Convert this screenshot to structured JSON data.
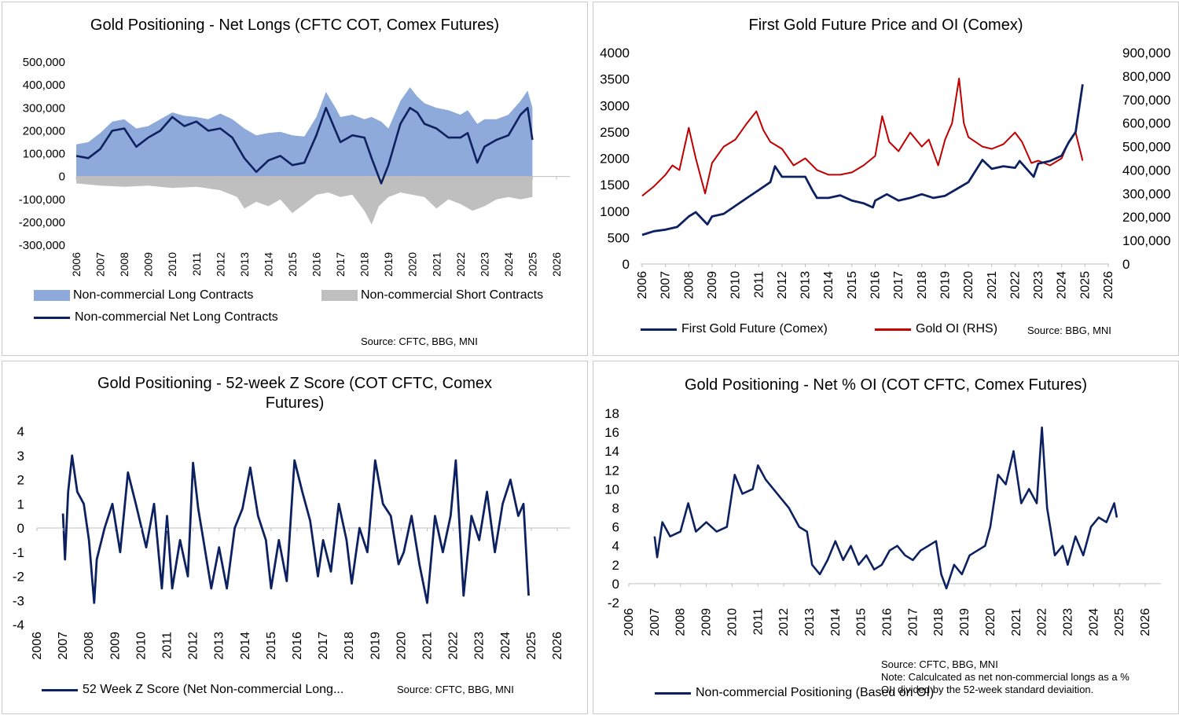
{
  "colors": {
    "long": "#8eaadb",
    "short": "#bfbfbf",
    "navy": "#0d2161",
    "red": "#c00000",
    "axis": "#bfbfbf"
  },
  "chart_data": [
    {
      "id": "p1",
      "type": "area",
      "title": "Gold Positioning - Net Longs (CFTC COT, Comex Futures)",
      "x_ticks": [
        "2006",
        "2007",
        "2008",
        "2009",
        "2010",
        "2011",
        "2012",
        "2013",
        "2014",
        "2015",
        "2016",
        "2017",
        "2018",
        "2019",
        "2020",
        "2021",
        "2022",
        "2023",
        "2024",
        "2025",
        "2026"
      ],
      "y_ticks": [
        "500,000",
        "400,000",
        "300,000",
        "200,000",
        "100,000",
        "0",
        "-100,000",
        "-200,000",
        "-300,000"
      ],
      "ylim": [
        -300000,
        500000
      ],
      "xlim": [
        2006,
        2026
      ],
      "series": [
        {
          "name": "Non-commercial Long Contracts",
          "kind": "area",
          "x": [
            2006,
            2006.5,
            2007,
            2007.5,
            2008,
            2008.5,
            2009,
            2009.5,
            2010,
            2010.5,
            2011,
            2011.5,
            2012,
            2012.5,
            2013,
            2013.5,
            2014,
            2014.5,
            2015,
            2015.5,
            2016,
            2016.4,
            2016.8,
            2017,
            2017.5,
            2018,
            2018.3,
            2018.7,
            2019,
            2019.5,
            2019.9,
            2020.2,
            2020.5,
            2021,
            2021.5,
            2022,
            2022.3,
            2022.7,
            2023,
            2023.5,
            2024,
            2024.5,
            2024.8,
            2025
          ],
          "y": [
            140000,
            150000,
            190000,
            240000,
            250000,
            210000,
            220000,
            250000,
            280000,
            265000,
            260000,
            250000,
            275000,
            250000,
            210000,
            180000,
            190000,
            195000,
            180000,
            175000,
            260000,
            370000,
            300000,
            260000,
            270000,
            250000,
            260000,
            240000,
            210000,
            330000,
            390000,
            350000,
            320000,
            300000,
            290000,
            270000,
            290000,
            230000,
            250000,
            250000,
            270000,
            330000,
            375000,
            300000
          ]
        },
        {
          "name": "Non-commercial Short Contracts",
          "kind": "area",
          "x": [
            2006,
            2007,
            2008,
            2009,
            2010,
            2011,
            2012,
            2012.7,
            2013,
            2013.5,
            2014,
            2014.5,
            2015,
            2015.5,
            2016,
            2016.5,
            2017,
            2017.5,
            2018,
            2018.3,
            2018.6,
            2019,
            2019.5,
            2020,
            2020.5,
            2021,
            2021.5,
            2022,
            2022.5,
            2023,
            2023.5,
            2024,
            2024.5,
            2025
          ],
          "y": [
            -30000,
            -40000,
            -45000,
            -40000,
            -50000,
            -45000,
            -60000,
            -90000,
            -140000,
            -110000,
            -130000,
            -100000,
            -160000,
            -120000,
            -80000,
            -70000,
            -90000,
            -80000,
            -150000,
            -210000,
            -130000,
            -90000,
            -70000,
            -80000,
            -90000,
            -140000,
            -100000,
            -120000,
            -150000,
            -130000,
            -100000,
            -90000,
            -100000,
            -90000
          ]
        },
        {
          "name": "Non-commercial Net Long Contracts",
          "kind": "line",
          "x": [
            2006,
            2006.5,
            2007,
            2007.5,
            2008,
            2008.5,
            2009,
            2009.5,
            2010,
            2010.5,
            2011,
            2011.5,
            2012,
            2012.5,
            2013,
            2013.5,
            2014,
            2014.5,
            2015,
            2015.5,
            2016,
            2016.4,
            2016.8,
            2017,
            2017.5,
            2018,
            2018.3,
            2018.7,
            2019,
            2019.5,
            2019.9,
            2020.2,
            2020.5,
            2021,
            2021.5,
            2022,
            2022.3,
            2022.7,
            2023,
            2023.5,
            2024,
            2024.5,
            2024.8,
            2025
          ],
          "y": [
            90000,
            80000,
            120000,
            200000,
            210000,
            130000,
            170000,
            200000,
            260000,
            220000,
            240000,
            200000,
            210000,
            170000,
            80000,
            20000,
            70000,
            90000,
            50000,
            60000,
            180000,
            300000,
            200000,
            150000,
            180000,
            170000,
            80000,
            -30000,
            50000,
            230000,
            300000,
            280000,
            230000,
            210000,
            170000,
            170000,
            190000,
            60000,
            130000,
            160000,
            180000,
            270000,
            300000,
            160000
          ]
        }
      ],
      "legend": [
        "Non-commercial Long Contracts",
        "Non-commercial Short Contracts",
        "Non-commercial Net Long Contracts"
      ],
      "source": "Source: CFTC, BBG, MNI"
    },
    {
      "id": "p2",
      "type": "line",
      "title": "First Gold Future  Price and OI (Comex)",
      "x_ticks": [
        "2006",
        "2007",
        "2008",
        "2009",
        "2010",
        "2011",
        "2012",
        "2013",
        "2014",
        "2015",
        "2016",
        "2017",
        "2018",
        "2019",
        "2020",
        "2021",
        "2022",
        "2023",
        "2024",
        "2025",
        "2026"
      ],
      "y_ticks_left": [
        "4000",
        "3500",
        "3000",
        "2500",
        "2000",
        "1500",
        "1000",
        "500",
        "0"
      ],
      "y_ticks_right": [
        "900,000",
        "800,000",
        "700,000",
        "600,000",
        "500,000",
        "400,000",
        "300,000",
        "200,000",
        "100,000",
        "0"
      ],
      "ylim_left": [
        0,
        4000
      ],
      "ylim_right": [
        0,
        900000
      ],
      "xlim": [
        2006,
        2026
      ],
      "series": [
        {
          "name": "First Gold Future (Comex)",
          "axis": "left",
          "x": [
            2006,
            2006.5,
            2007,
            2007.5,
            2008,
            2008.3,
            2008.8,
            2009,
            2009.5,
            2010,
            2010.5,
            2011,
            2011.5,
            2011.7,
            2012,
            2012.5,
            2013,
            2013.3,
            2013.5,
            2014,
            2014.5,
            2015,
            2015.5,
            2015.9,
            2016,
            2016.5,
            2017,
            2017.5,
            2018,
            2018.5,
            2019,
            2019.5,
            2020,
            2020.6,
            2021,
            2021.5,
            2022,
            2022.2,
            2022.8,
            2023,
            2023.5,
            2024,
            2024.3,
            2024.6,
            2024.9
          ],
          "y": [
            550,
            620,
            650,
            700,
            900,
            980,
            750,
            900,
            950,
            1100,
            1250,
            1400,
            1550,
            1850,
            1650,
            1650,
            1650,
            1400,
            1250,
            1250,
            1300,
            1200,
            1150,
            1070,
            1200,
            1320,
            1200,
            1250,
            1320,
            1250,
            1290,
            1420,
            1550,
            1970,
            1800,
            1850,
            1820,
            1950,
            1650,
            1900,
            1950,
            2050,
            2300,
            2500,
            3400
          ]
        },
        {
          "name": "Gold OI (RHS)",
          "axis": "right",
          "x": [
            2006,
            2006.5,
            2007,
            2007.3,
            2007.6,
            2008,
            2008.3,
            2008.7,
            2009,
            2009.5,
            2010,
            2010.5,
            2010.9,
            2011.2,
            2011.5,
            2012,
            2012.5,
            2013,
            2013.5,
            2014,
            2014.5,
            2015,
            2015.5,
            2016,
            2016.3,
            2016.6,
            2017,
            2017.5,
            2018,
            2018.3,
            2018.7,
            2019,
            2019.3,
            2019.6,
            2019.8,
            2020,
            2020.3,
            2020.6,
            2021,
            2021.5,
            2022,
            2022.3,
            2022.7,
            2023,
            2023.5,
            2024,
            2024.3,
            2024.6,
            2024.9
          ],
          "y": [
            290000,
            330000,
            380000,
            420000,
            400000,
            580000,
            450000,
            300000,
            430000,
            500000,
            530000,
            600000,
            650000,
            570000,
            520000,
            490000,
            420000,
            450000,
            400000,
            380000,
            380000,
            390000,
            420000,
            460000,
            630000,
            520000,
            480000,
            560000,
            500000,
            530000,
            420000,
            530000,
            600000,
            790000,
            600000,
            540000,
            520000,
            500000,
            490000,
            510000,
            560000,
            520000,
            430000,
            440000,
            420000,
            450000,
            520000,
            560000,
            440000
          ]
        }
      ],
      "legend": [
        "First Gold Future (Comex)",
        "Gold OI (RHS)"
      ],
      "source": "Source:  BBG, MNI"
    },
    {
      "id": "p3",
      "type": "line",
      "title_lines": [
        "Gold Positioning - 52-week Z Score (COT CFTC, Comex",
        "Futures)"
      ],
      "x_ticks": [
        "2006",
        "2007",
        "2008",
        "2009",
        "2010",
        "2011",
        "2012",
        "2013",
        "2014",
        "2015",
        "2016",
        "2017",
        "2018",
        "2019",
        "2020",
        "2021",
        "2022",
        "2023",
        "2024",
        "2025",
        "2026"
      ],
      "y_ticks": [
        "4",
        "3",
        "2",
        "1",
        "0",
        "-1",
        "-2",
        "-3",
        "-4"
      ],
      "ylim": [
        -4,
        4
      ],
      "xlim": [
        2006,
        2026
      ],
      "series": [
        {
          "name": "52 Week Z Score (Net Non-commercial Long...",
          "x": [
            2007.0,
            2007.08,
            2007.2,
            2007.35,
            2007.55,
            2007.8,
            2008.0,
            2008.2,
            2008.3,
            2008.6,
            2008.9,
            2009.2,
            2009.5,
            2009.8,
            2010.2,
            2010.5,
            2010.8,
            2011.0,
            2011.2,
            2011.5,
            2011.8,
            2012.0,
            2012.2,
            2012.4,
            2012.7,
            2013.0,
            2013.3,
            2013.6,
            2013.9,
            2014.2,
            2014.5,
            2014.8,
            2015.0,
            2015.3,
            2015.6,
            2015.9,
            2016.2,
            2016.5,
            2016.8,
            2017.0,
            2017.3,
            2017.6,
            2017.9,
            2018.1,
            2018.4,
            2018.7,
            2019.0,
            2019.3,
            2019.6,
            2019.9,
            2020.1,
            2020.4,
            2020.7,
            2021.0,
            2021.3,
            2021.6,
            2021.9,
            2022.1,
            2022.4,
            2022.7,
            2023.0,
            2023.3,
            2023.6,
            2023.9,
            2024.2,
            2024.5,
            2024.7,
            2024.9
          ],
          "y": [
            0.6,
            -1.3,
            1.5,
            3.0,
            1.5,
            1.0,
            -0.5,
            -3.1,
            -1.3,
            0.0,
            1.0,
            -1.0,
            2.3,
            1.0,
            -0.8,
            1.0,
            -2.5,
            0.5,
            -2.5,
            -0.5,
            -2.0,
            2.7,
            0.8,
            -0.5,
            -2.5,
            -0.8,
            -2.5,
            0.0,
            0.8,
            2.5,
            0.5,
            -0.5,
            -2.5,
            -0.5,
            -2.2,
            2.8,
            1.5,
            0.3,
            -2.0,
            -0.5,
            -1.8,
            1.0,
            -0.5,
            -2.3,
            0.0,
            -1.0,
            2.8,
            1.0,
            0.5,
            -1.5,
            -1.0,
            0.5,
            -1.5,
            -3.1,
            0.5,
            -1.0,
            0.5,
            2.8,
            -2.8,
            0.5,
            -0.5,
            1.5,
            -1.0,
            1.0,
            2.0,
            0.5,
            1.0,
            -2.8
          ]
        }
      ],
      "legend": [
        "52 Week Z Score (Net Non-commercial Long..."
      ],
      "source": "Source: CFTC, BBG, MNI"
    },
    {
      "id": "p4",
      "type": "line",
      "title": "Gold Positioning - Net % OI (COT CFTC, Comex Futures)",
      "x_ticks": [
        "2006",
        "2007",
        "2008",
        "2009",
        "2010",
        "2011",
        "2012",
        "2013",
        "2014",
        "2015",
        "2016",
        "2017",
        "2018",
        "2019",
        "2020",
        "2021",
        "2022",
        "2023",
        "2024",
        "2025",
        "2026"
      ],
      "y_ticks": [
        "18",
        "16",
        "14",
        "12",
        "10",
        "8",
        "6",
        "4",
        "2",
        "0",
        "-2"
      ],
      "ylim": [
        -2,
        18
      ],
      "xlim": [
        2006,
        2026
      ],
      "series": [
        {
          "name": "Non-commercial Positioning (Based on OI)",
          "x": [
            2007.0,
            2007.1,
            2007.3,
            2007.6,
            2008.0,
            2008.3,
            2008.6,
            2009.0,
            2009.4,
            2009.8,
            2010.1,
            2010.4,
            2010.8,
            2011.0,
            2011.3,
            2011.6,
            2011.9,
            2012.2,
            2012.6,
            2012.9,
            2013.1,
            2013.4,
            2013.7,
            2014.0,
            2014.3,
            2014.6,
            2014.9,
            2015.2,
            2015.5,
            2015.8,
            2016.1,
            2016.4,
            2016.7,
            2017.0,
            2017.3,
            2017.6,
            2017.9,
            2018.1,
            2018.3,
            2018.6,
            2018.9,
            2019.2,
            2019.5,
            2019.8,
            2020.0,
            2020.3,
            2020.6,
            2020.9,
            2021.2,
            2021.5,
            2021.8,
            2022.0,
            2022.2,
            2022.5,
            2022.8,
            2023.0,
            2023.3,
            2023.6,
            2023.9,
            2024.2,
            2024.5,
            2024.8,
            2024.9
          ],
          "y": [
            5.0,
            2.8,
            6.5,
            5.0,
            5.5,
            8.5,
            5.5,
            6.5,
            5.5,
            6.0,
            11.5,
            9.5,
            10.0,
            12.5,
            11.0,
            10.0,
            9.0,
            8.0,
            6.0,
            5.5,
            2.0,
            1.0,
            2.5,
            4.5,
            2.5,
            4.0,
            2.0,
            3.0,
            1.5,
            2.0,
            3.5,
            4.0,
            3.0,
            2.5,
            3.5,
            4.0,
            4.5,
            1.0,
            -0.5,
            2.0,
            1.0,
            3.0,
            3.5,
            4.0,
            6.0,
            11.5,
            10.5,
            14.0,
            8.5,
            10.0,
            8.5,
            16.5,
            8.0,
            3.0,
            4.0,
            2.0,
            5.0,
            3.0,
            6.0,
            7.0,
            6.5,
            8.5,
            7.0
          ]
        }
      ],
      "legend": [
        "Non-commercial Positioning (Based on OI)"
      ],
      "source": "Source: CFTC, BBG, MNI",
      "note_lines": [
        "Note: Calculcated as net non-commercial longs as a %",
        "OI, divided by the 52-week standard deviaition."
      ]
    }
  ]
}
